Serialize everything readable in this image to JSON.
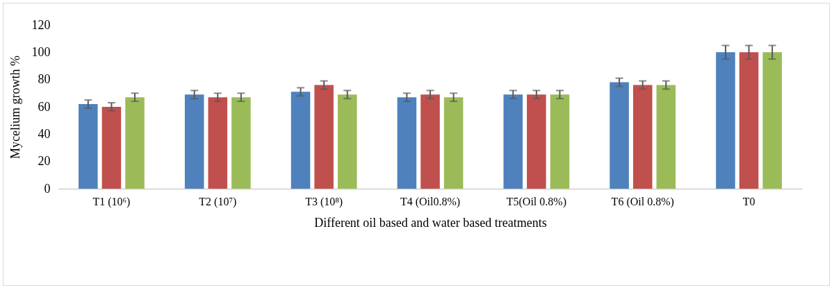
{
  "chart_data": {
    "type": "bar",
    "xlabel": "Different oil based and water based treatments",
    "ylabel": "Mycelium growth %",
    "categories": [
      "T1 (10⁶)",
      "T2 (10⁷)",
      "T3 (10⁸)",
      "T4 (Oil0.8%)",
      "T5(Oil 0.8%)",
      "T6 (Oil 0.8%)",
      "T0"
    ],
    "series": [
      {
        "color": "#4f81bd",
        "values": [
          62,
          69,
          71,
          67,
          69,
          78,
          100
        ],
        "errors": [
          3,
          3,
          3,
          3,
          3,
          3,
          5
        ]
      },
      {
        "color": "#c0504d",
        "values": [
          60,
          67,
          76,
          69,
          69,
          76,
          100
        ],
        "errors": [
          3,
          3,
          3,
          3,
          3,
          3,
          5
        ]
      },
      {
        "color": "#9bbb59",
        "values": [
          67,
          67,
          69,
          67,
          69,
          76,
          100
        ],
        "errors": [
          3,
          3,
          3,
          3,
          3,
          3,
          5
        ]
      }
    ],
    "ylim": [
      0,
      120
    ],
    "yticks": [
      0,
      20,
      40,
      60,
      80,
      100,
      120
    ],
    "grid": false,
    "legend": false
  }
}
